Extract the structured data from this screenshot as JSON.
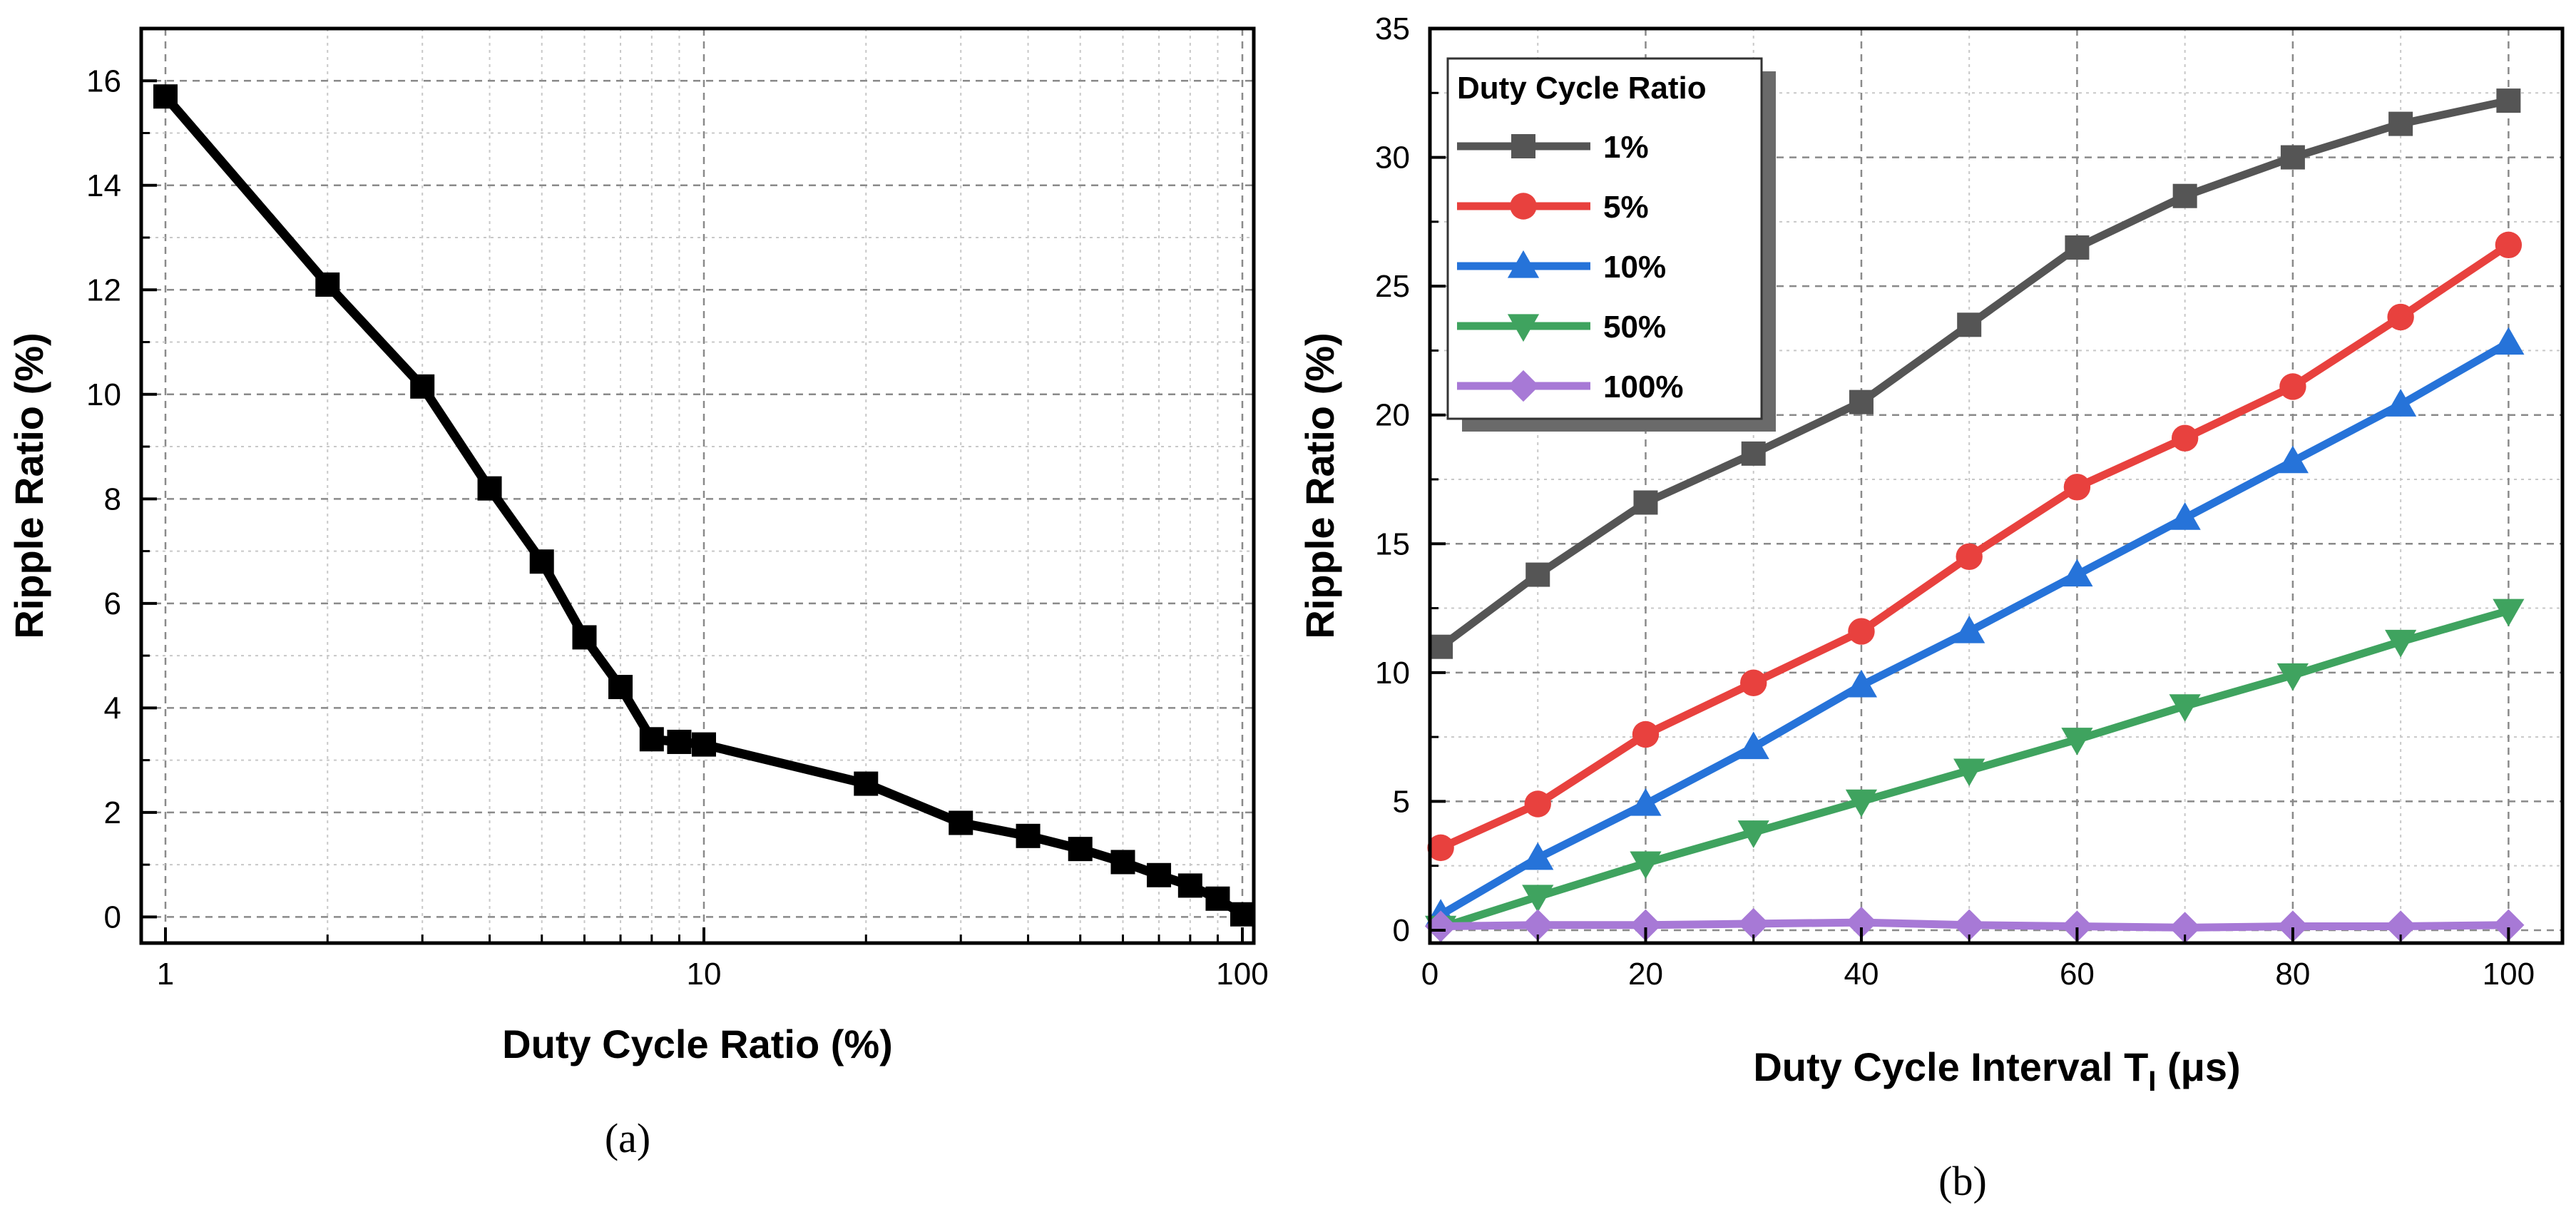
{
  "chart_data": [
    {
      "panel": "(a)",
      "type": "line",
      "xscale": "log",
      "xlabel": "Duty Cycle Ratio (%)",
      "ylabel": "Ripple Ratio (%)",
      "xlim": [
        1,
        100
      ],
      "ylim": [
        -0.5,
        17
      ],
      "xticks": [
        1,
        10,
        100
      ],
      "yticks": [
        0,
        2,
        4,
        6,
        8,
        10,
        12,
        14,
        16
      ],
      "grid": true,
      "series": [
        {
          "name": "Ripple Ratio",
          "color": "#000000",
          "marker": "square",
          "x": [
            1,
            2,
            3,
            4,
            5,
            6,
            7,
            8,
            9,
            10,
            20,
            30,
            40,
            50,
            60,
            70,
            80,
            90,
            100
          ],
          "y": [
            15.7,
            12.1,
            10.15,
            8.2,
            6.8,
            5.35,
            4.4,
            3.4,
            3.35,
            3.3,
            2.55,
            1.8,
            1.55,
            1.3,
            1.05,
            0.8,
            0.6,
            0.35,
            0.05
          ]
        }
      ]
    },
    {
      "panel": "(b)",
      "type": "line",
      "xlabel": "Duty Cycle Interval T",
      "xlabel_sub": "I",
      "xlabel_unit": " (μs)",
      "ylabel": "Ripple Ratio (%)",
      "xlim": [
        0,
        105
      ],
      "ylim": [
        -0.5,
        35
      ],
      "xticks": [
        0,
        20,
        40,
        60,
        80,
        100
      ],
      "yticks": [
        0,
        5,
        10,
        15,
        20,
        25,
        30,
        35
      ],
      "grid": true,
      "legend_title": "Duty Cycle Ratio",
      "legend_position": "top-left",
      "x": [
        1,
        10,
        20,
        30,
        40,
        50,
        60,
        70,
        80,
        90,
        100
      ],
      "series": [
        {
          "name": "1%",
          "color": "#555555",
          "marker": "square",
          "values": [
            11.0,
            13.8,
            16.6,
            18.5,
            20.5,
            23.5,
            26.5,
            28.5,
            30.0,
            31.3,
            32.2
          ]
        },
        {
          "name": "5%",
          "color": "#e8413e",
          "marker": "circle",
          "values": [
            3.2,
            4.9,
            7.6,
            9.6,
            11.6,
            14.5,
            17.2,
            19.1,
            21.1,
            23.8,
            26.6
          ]
        },
        {
          "name": "10%",
          "color": "#2673d9",
          "marker": "triangle-up",
          "values": [
            0.6,
            2.8,
            4.9,
            7.1,
            9.5,
            11.6,
            13.8,
            16.0,
            18.2,
            20.4,
            22.8
          ]
        },
        {
          "name": "50%",
          "color": "#3fa35f",
          "marker": "triangle-down",
          "values": [
            0.1,
            1.3,
            2.6,
            3.8,
            5.0,
            6.2,
            7.4,
            8.7,
            9.9,
            11.2,
            12.4
          ]
        },
        {
          "name": "100%",
          "color": "#a779d6",
          "marker": "diamond",
          "values": [
            0.15,
            0.2,
            0.2,
            0.25,
            0.3,
            0.2,
            0.15,
            0.1,
            0.15,
            0.15,
            0.2
          ]
        }
      ]
    }
  ]
}
